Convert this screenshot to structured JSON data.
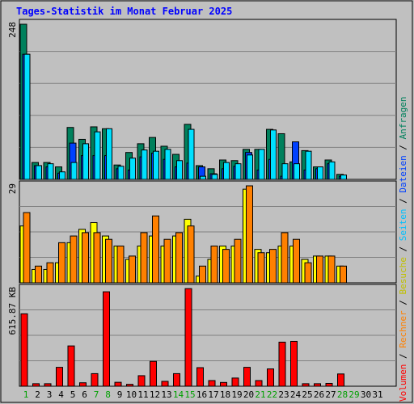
{
  "title": "Tages-Statistik im Monat Februar 2025",
  "colors": {
    "background": "#c0c0c0",
    "title": "#0000ff",
    "anfragen": "#00805c",
    "dateien": "#0040ff",
    "seiten": "#00e0ff",
    "besuche": "#ffff00",
    "rechner": "#ff8000",
    "volumen": "#ff0000",
    "weekend_label": "#00a000",
    "weekday_label": "#000000",
    "slash": "#000000"
  },
  "right_legend": [
    {
      "text": "Volumen",
      "color": "#ff0000"
    },
    {
      "text": "Rechner",
      "color": "#ff8000"
    },
    {
      "text": "Besuche",
      "color": "#c0c000"
    },
    {
      "text": "Seiten",
      "color": "#00c0ff"
    },
    {
      "text": "Dateien",
      "color": "#0040ff"
    },
    {
      "text": "Anfragen",
      "color": "#00805c"
    }
  ],
  "chart_data": [
    {
      "type": "bar",
      "panel": "top",
      "max_label": "248",
      "ymax": 248,
      "grid": true,
      "categories": [
        "1",
        "2",
        "3",
        "4",
        "5",
        "6",
        "7",
        "8",
        "9",
        "10",
        "11",
        "12",
        "13",
        "14",
        "15",
        "16",
        "17",
        "18",
        "19",
        "20",
        "21",
        "22",
        "23",
        "24",
        "25",
        "26",
        "27",
        "28",
        "29",
        "30",
        "31"
      ],
      "weekend": [
        1,
        7,
        8,
        14,
        15,
        21,
        22,
        28,
        29
      ],
      "series": [
        {
          "name": "Anfragen",
          "values": [
            248,
            27,
            27,
            20,
            83,
            64,
            84,
            81,
            23,
            43,
            57,
            67,
            53,
            40,
            88,
            22,
            17,
            31,
            30,
            48,
            48,
            80,
            73,
            28,
            46,
            20,
            31,
            8,
            0,
            0,
            0
          ]
        },
        {
          "name": "Dateien",
          "values": [
            200,
            22,
            20,
            10,
            58,
            38,
            38,
            38,
            17,
            15,
            36,
            42,
            32,
            20,
            26,
            20,
            9,
            17,
            21,
            43,
            15,
            32,
            5,
            60,
            15,
            17,
            25,
            5,
            0,
            0,
            0
          ]
        },
        {
          "name": "Seiten",
          "values": [
            200,
            22,
            25,
            12,
            27,
            57,
            76,
            81,
            21,
            34,
            47,
            45,
            48,
            30,
            80,
            5,
            8,
            27,
            25,
            39,
            48,
            79,
            25,
            25,
            45,
            20,
            28,
            7,
            0,
            0,
            0
          ]
        }
      ]
    },
    {
      "type": "bar",
      "panel": "middle",
      "max_label": "29",
      "ymax": 29,
      "grid": true,
      "categories": [
        "1",
        "2",
        "3",
        "4",
        "5",
        "6",
        "7",
        "8",
        "9",
        "10",
        "11",
        "12",
        "13",
        "14",
        "15",
        "16",
        "17",
        "18",
        "19",
        "20",
        "21",
        "22",
        "23",
        "24",
        "25",
        "26",
        "27",
        "28",
        "29",
        "30",
        "31"
      ],
      "series": [
        {
          "name": "Besuche",
          "values": [
            17,
            4,
            4,
            6,
            12,
            16,
            18,
            14,
            11,
            7,
            11,
            14,
            11,
            14,
            19,
            2,
            7,
            11,
            11,
            28,
            10,
            9,
            11,
            11,
            7,
            8,
            8,
            5,
            0,
            0,
            0
          ]
        },
        {
          "name": "Rechner",
          "values": [
            21,
            5,
            6,
            12,
            14,
            15,
            15,
            13,
            11,
            8,
            15,
            20,
            13,
            15,
            17,
            5,
            11,
            10,
            13,
            29,
            9,
            10,
            15,
            13,
            6,
            8,
            8,
            5,
            0,
            0,
            0
          ]
        }
      ]
    },
    {
      "type": "bar",
      "panel": "bottom",
      "max_label": "615.87 KB",
      "ymax": 615.87,
      "grid": true,
      "categories": [
        "1",
        "2",
        "3",
        "4",
        "5",
        "6",
        "7",
        "8",
        "9",
        "10",
        "11",
        "12",
        "13",
        "14",
        "15",
        "16",
        "17",
        "18",
        "19",
        "20",
        "21",
        "22",
        "23",
        "24",
        "25",
        "26",
        "27",
        "28",
        "29",
        "30",
        "31"
      ],
      "series": [
        {
          "name": "Volumen",
          "values": [
            460,
            16,
            16,
            120,
            256,
            22,
            80,
            600,
            25,
            12,
            67,
            158,
            31,
            80,
            620,
            118,
            36,
            24,
            52,
            120,
            36,
            110,
            280,
            285,
            16,
            16,
            18,
            78,
            0,
            0,
            0
          ]
        }
      ]
    }
  ]
}
